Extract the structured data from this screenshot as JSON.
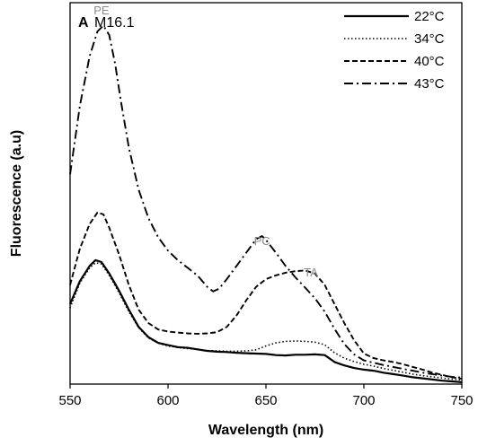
{
  "chart_data": {
    "type": "line",
    "panel_letter": "A",
    "title": "M16.1",
    "xlabel": "Wavelength (nm)",
    "ylabel": "Fluorescence (a.u)",
    "xlim": [
      550,
      750
    ],
    "ylim": [
      0,
      100
    ],
    "xticks": [
      "550",
      "600",
      "650",
      "700",
      "750"
    ],
    "grid": false,
    "legend_position": "top-right",
    "annotations": [
      {
        "text": "PE",
        "x": 566,
        "y": 97
      },
      {
        "text": "PC",
        "x": 648,
        "y": 36.5
      },
      {
        "text": "TA",
        "x": 673,
        "y": 28.2
      }
    ],
    "series": [
      {
        "name": "22°C",
        "dash": "solid",
        "x": [
          550,
          555,
          560,
          563,
          566,
          570,
          575,
          580,
          585,
          590,
          595,
          600,
          605,
          610,
          615,
          620,
          625,
          630,
          635,
          640,
          645,
          650,
          655,
          660,
          665,
          670,
          675,
          680,
          685,
          690,
          695,
          700,
          705,
          710,
          715,
          720,
          725,
          730,
          735,
          740,
          745,
          750
        ],
        "y": [
          21,
          27,
          31,
          32.5,
          32,
          29,
          24.5,
          19.5,
          15,
          12.3,
          10.8,
          10.2,
          9.7,
          9.5,
          9.1,
          8.7,
          8.5,
          8.4,
          8.2,
          8.1,
          8.0,
          7.9,
          7.6,
          7.5,
          7.7,
          7.7,
          7.8,
          7.6,
          5.8,
          4.9,
          4.2,
          3.8,
          3.5,
          3.0,
          2.6,
          2.2,
          1.8,
          1.5,
          1.2,
          0.9,
          0.7,
          0.5
        ]
      },
      {
        "name": "34°C",
        "dash": "dotted",
        "x": [
          550,
          555,
          560,
          563,
          566,
          570,
          575,
          580,
          585,
          590,
          595,
          600,
          605,
          610,
          615,
          620,
          625,
          630,
          635,
          640,
          645,
          650,
          655,
          660,
          665,
          670,
          675,
          680,
          685,
          690,
          695,
          700,
          705,
          710,
          715,
          720,
          725,
          730,
          735,
          740,
          745,
          750
        ],
        "y": [
          20,
          26.5,
          30.5,
          31.8,
          31.5,
          28.5,
          24,
          19,
          14.8,
          12.1,
          10.7,
          10.0,
          9.6,
          9.3,
          9.1,
          8.8,
          8.7,
          8.6,
          8.6,
          8.7,
          9.0,
          10.0,
          10.8,
          11.2,
          11.3,
          11.2,
          11.0,
          10.3,
          8.2,
          6.8,
          5.9,
          5.2,
          4.7,
          4.1,
          3.6,
          3.1,
          2.6,
          2.2,
          1.9,
          1.6,
          1.3,
          1.1
        ]
      },
      {
        "name": "40°C",
        "dash": "dashed",
        "x": [
          550,
          555,
          560,
          564,
          567,
          570,
          575,
          580,
          585,
          590,
          595,
          600,
          605,
          610,
          615,
          620,
          625,
          630,
          635,
          640,
          645,
          650,
          655,
          660,
          665,
          670,
          675,
          680,
          685,
          690,
          695,
          700,
          705,
          710,
          715,
          720,
          725,
          730,
          735,
          740,
          745,
          750
        ],
        "y": [
          26,
          35.5,
          42,
          45,
          44.5,
          41,
          34,
          26,
          19.5,
          16,
          14.3,
          13.8,
          13.5,
          13.3,
          13.2,
          13.3,
          13.6,
          15,
          18,
          22,
          25.5,
          27.5,
          28.5,
          29.2,
          29.6,
          29.8,
          29.0,
          26,
          21,
          16,
          11.5,
          8.0,
          6.8,
          6.2,
          5.8,
          5.2,
          4.5,
          3.8,
          3.0,
          2.4,
          1.8,
          1.4
        ]
      },
      {
        "name": "43°C",
        "dash": "dashdot",
        "x": [
          550,
          555,
          560,
          564,
          567,
          570,
          573,
          576,
          580,
          585,
          590,
          595,
          600,
          605,
          610,
          615,
          620,
          623,
          626,
          630,
          635,
          640,
          645,
          648,
          650,
          655,
          660,
          665,
          670,
          675,
          680,
          685,
          690,
          695,
          700,
          705,
          710,
          715,
          720,
          725,
          730,
          735,
          740,
          745,
          750
        ],
        "y": [
          55,
          73,
          86,
          92.5,
          94,
          91.5,
          84,
          74,
          62,
          51,
          43.5,
          38.5,
          35,
          32.5,
          30.5,
          28.5,
          25.5,
          24.3,
          25,
          27.5,
          31,
          34.5,
          38,
          38.8,
          37.8,
          34.5,
          31,
          28,
          25.3,
          22.5,
          19,
          14.5,
          10.5,
          7.8,
          6.2,
          5.6,
          5.0,
          4.5,
          4.0,
          3.5,
          3.0,
          2.6,
          2.2,
          1.9,
          1.7
        ]
      }
    ]
  }
}
